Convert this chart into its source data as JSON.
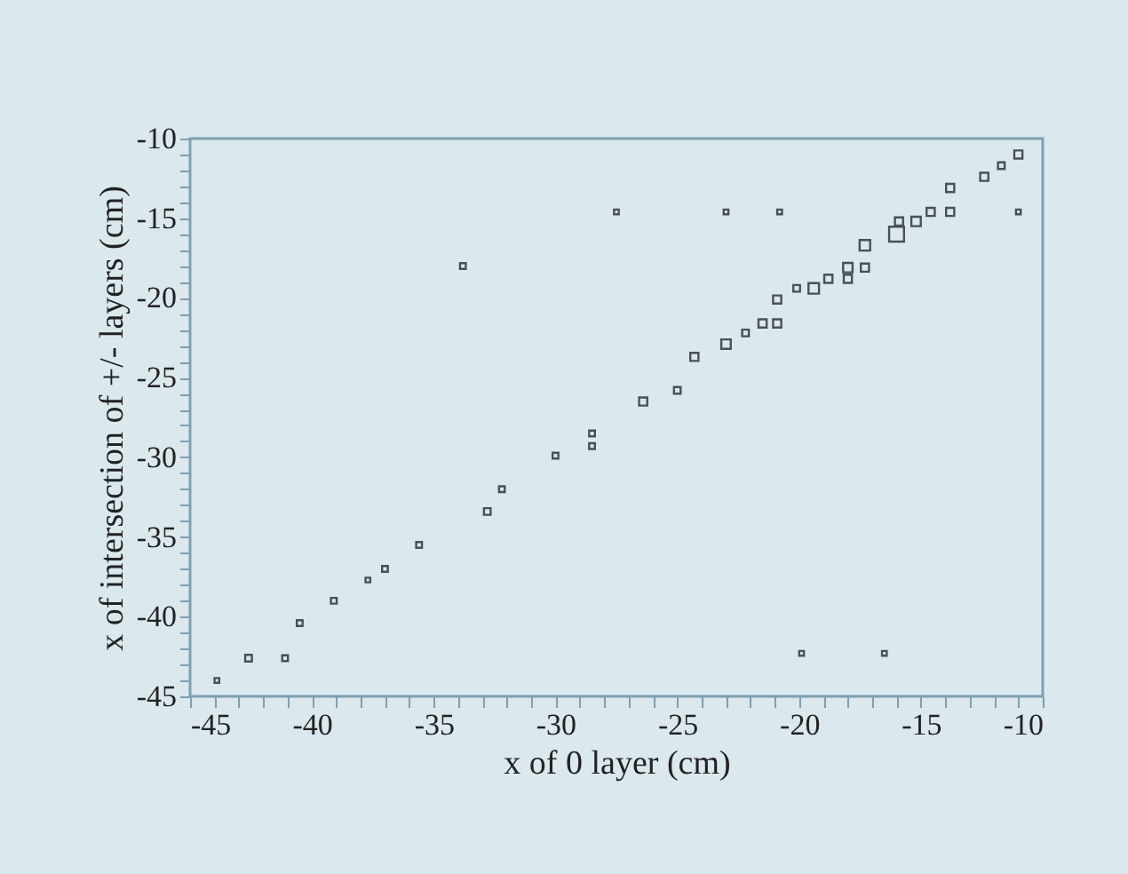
{
  "chart_data": {
    "type": "bubble",
    "xlabel": "x of 0 layer  (cm)",
    "ylabel": "x of intersection of +/- layers  (cm)",
    "xlim": [
      -45,
      -10
    ],
    "ylim": [
      -45,
      -10
    ],
    "xticks": [
      -45,
      {
        "value": -44,
        "label": null
      },
      {
        "value": -43,
        "label": null
      },
      {
        "value": -42,
        "label": null
      },
      {
        "value": -41,
        "label": null
      },
      -40,
      {
        "value": -39,
        "label": null
      },
      {
        "value": -38,
        "label": null
      },
      {
        "value": -37,
        "label": null
      },
      {
        "value": -36,
        "label": null
      },
      -35,
      {
        "value": -34,
        "label": null
      },
      {
        "value": -33,
        "label": null
      },
      {
        "value": -32,
        "label": null
      },
      {
        "value": -31,
        "label": null
      },
      -30,
      {
        "value": -29,
        "label": null
      },
      {
        "value": -28,
        "label": null
      },
      {
        "value": -27,
        "label": null
      },
      {
        "value": -26,
        "label": null
      },
      -25,
      {
        "value": -24,
        "label": null
      },
      {
        "value": -23,
        "label": null
      },
      {
        "value": -22,
        "label": null
      },
      {
        "value": -21,
        "label": null
      },
      -20,
      {
        "value": -19,
        "label": null
      },
      {
        "value": -18,
        "label": null
      },
      {
        "value": -17,
        "label": null
      },
      {
        "value": -16,
        "label": null
      },
      -15,
      {
        "value": -14,
        "label": null
      },
      {
        "value": -13,
        "label": null
      },
      {
        "value": -12,
        "label": null
      },
      {
        "value": -11,
        "label": null
      },
      -10
    ],
    "yticks": [
      -45,
      {
        "value": -44,
        "label": null
      },
      {
        "value": -43,
        "label": null
      },
      {
        "value": -42,
        "label": null
      },
      {
        "value": -41,
        "label": null
      },
      -40,
      {
        "value": -39,
        "label": null
      },
      {
        "value": -38,
        "label": null
      },
      {
        "value": -37,
        "label": null
      },
      {
        "value": -36,
        "label": null
      },
      -35,
      {
        "value": -34,
        "label": null
      },
      {
        "value": -33,
        "label": null
      },
      {
        "value": -32,
        "label": null
      },
      {
        "value": -31,
        "label": null
      },
      -30,
      {
        "value": -29,
        "label": null
      },
      {
        "value": -28,
        "label": null
      },
      {
        "value": -27,
        "label": null
      },
      {
        "value": -26,
        "label": null
      },
      -25,
      {
        "value": -24,
        "label": null
      },
      {
        "value": -23,
        "label": null
      },
      {
        "value": -22,
        "label": null
      },
      {
        "value": -21,
        "label": null
      },
      -20,
      {
        "value": -19,
        "label": null
      },
      {
        "value": -18,
        "label": null
      },
      {
        "value": -17,
        "label": null
      },
      {
        "value": -16,
        "label": null
      },
      -15,
      {
        "value": -14,
        "label": null
      },
      {
        "value": -13,
        "label": null
      },
      {
        "value": -12,
        "label": null
      },
      {
        "value": -11,
        "label": null
      },
      -10
    ],
    "grid": false,
    "marker": "square",
    "series": [
      {
        "color": "#4a4f5a",
        "x": [
          -16.0,
          -17.3,
          -15.2,
          -15.9,
          -14.6,
          -13.8,
          -13.8,
          -12.4,
          -11.0,
          -11.7,
          -18.0,
          -17.3,
          -18.8,
          -18.0,
          -19.4,
          -20.1,
          -20.9,
          -21.5,
          -20.9,
          -22.2,
          -23.0,
          -24.3,
          -25.0,
          -26.4,
          -28.5,
          -28.5,
          -30.0,
          -32.2,
          -32.8,
          -35.6,
          -37.0,
          -37.7,
          -39.1,
          -40.5,
          -42.6,
          -41.1,
          -43.9,
          -33.8,
          -27.5,
          -23.0,
          -20.8,
          -11.0,
          -19.9,
          -16.5
        ],
        "values": [
          -16.0,
          -16.7,
          -15.2,
          -15.2,
          -14.6,
          -14.6,
          -13.1,
          -12.4,
          -11.0,
          -11.7,
          -18.1,
          -18.1,
          -18.8,
          -18.8,
          -19.4,
          -19.4,
          -20.1,
          -21.6,
          -21.6,
          -22.2,
          -22.9,
          -23.7,
          -25.8,
          -26.5,
          -28.5,
          -29.3,
          -29.9,
          -32.0,
          -33.4,
          -35.5,
          -37.0,
          -37.7,
          -39.0,
          -40.4,
          -42.6,
          -42.6,
          -44.0,
          -18.0,
          -14.6,
          -14.6,
          -14.6,
          -14.6,
          -42.3,
          -42.3
        ],
        "sizes": [
          1,
          0.5,
          0.4,
          0.3,
          0.3,
          0.3,
          0.3,
          0.3,
          0.3,
          0.2,
          0.4,
          0.3,
          0.3,
          0.3,
          0.5,
          0.2,
          0.3,
          0.3,
          0.3,
          0.2,
          0.4,
          0.3,
          0.2,
          0.3,
          0.15,
          0.15,
          0.15,
          0.15,
          0.2,
          0.15,
          0.15,
          0.1,
          0.15,
          0.15,
          0.2,
          0.15,
          0.1,
          0.15,
          0.1,
          0.1,
          0.1,
          0.1,
          0.1,
          0.1
        ]
      }
    ]
  }
}
